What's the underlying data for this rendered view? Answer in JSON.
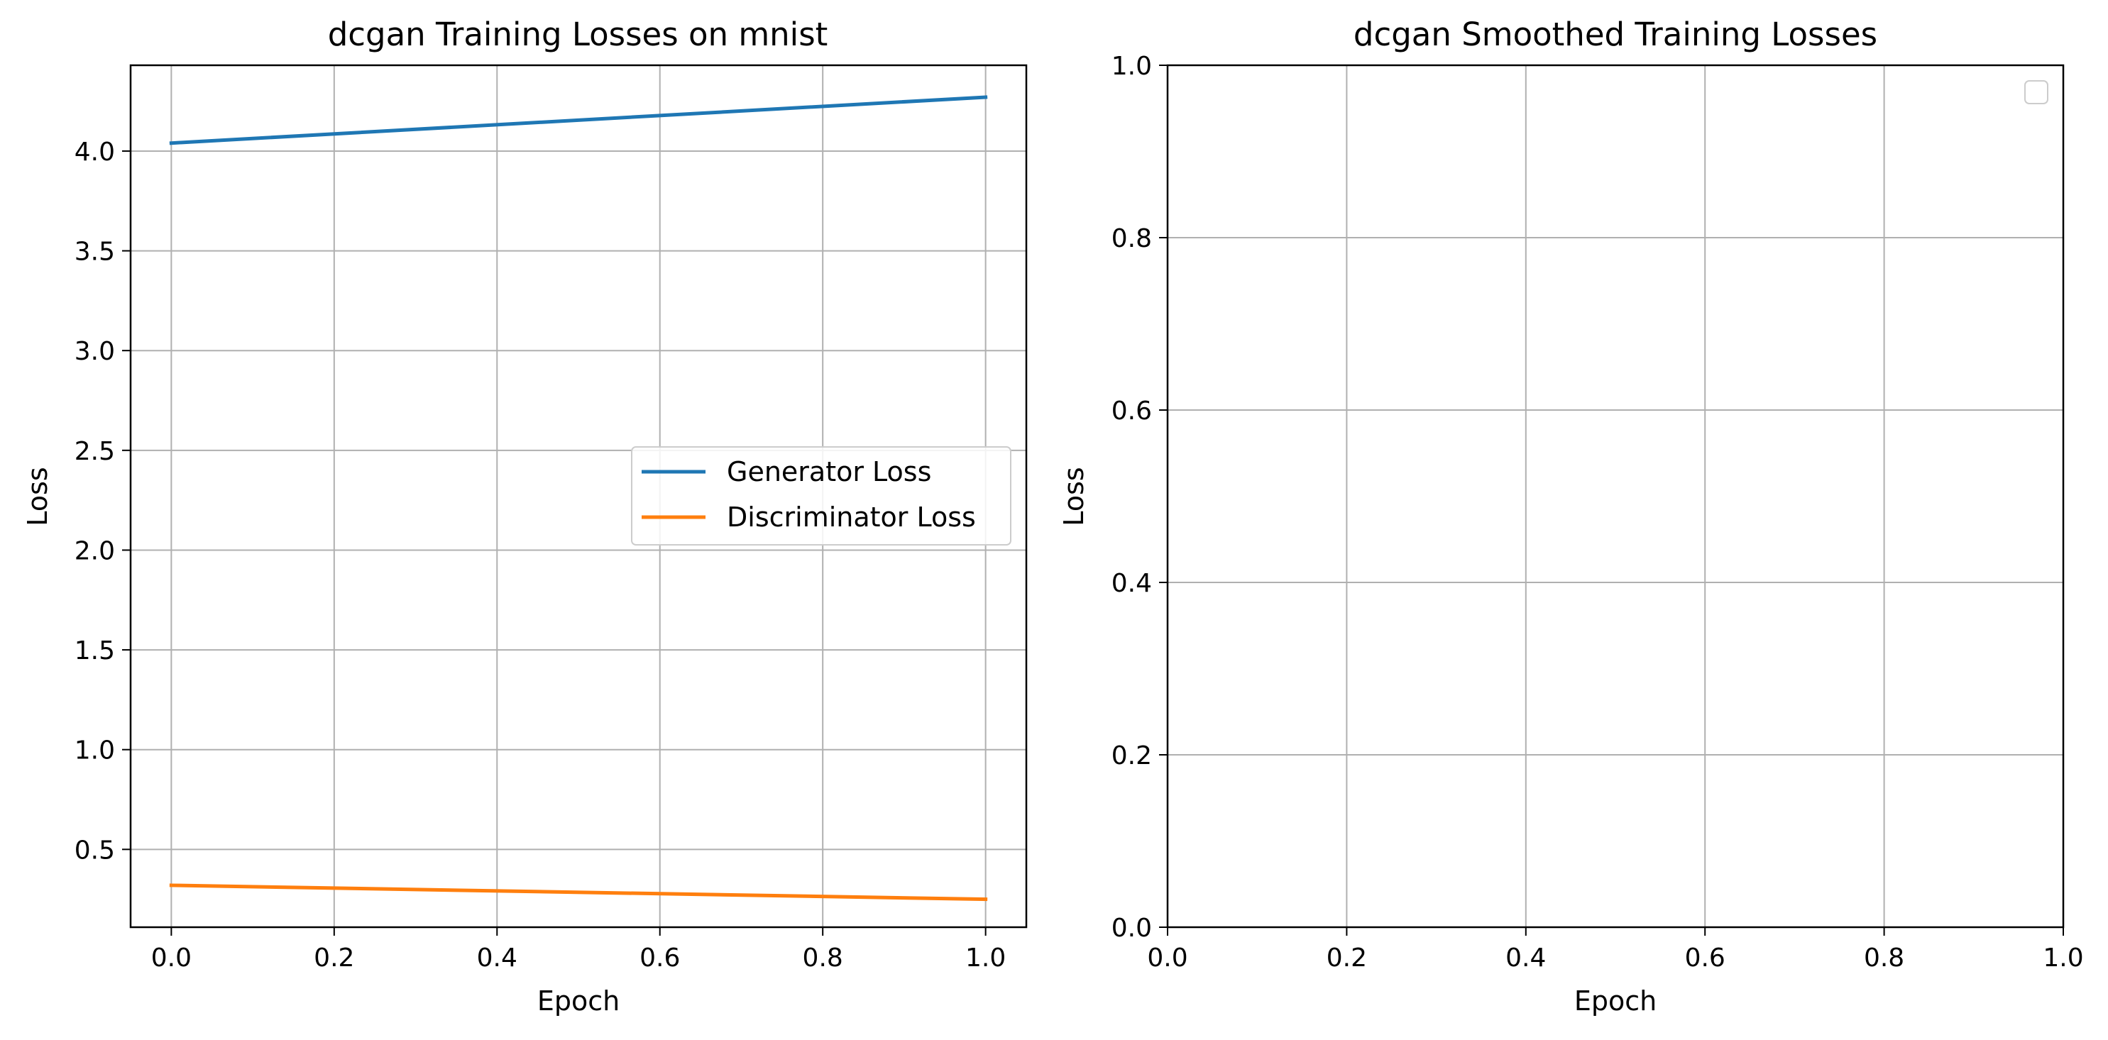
{
  "chart_data": [
    {
      "type": "line",
      "title": "dcgan Training Losses on mnist",
      "xlabel": "Epoch",
      "ylabel": "Loss",
      "xlim": [
        -0.05,
        1.05
      ],
      "ylim": [
        0.11,
        4.43
      ],
      "xticks": [
        "0.0",
        "0.2",
        "0.4",
        "0.6",
        "0.8",
        "1.0"
      ],
      "yticks": [
        "0.5",
        "1.0",
        "1.5",
        "2.0",
        "2.5",
        "3.0",
        "3.5",
        "4.0"
      ],
      "grid": true,
      "legend_position": "center-right",
      "x": [
        0,
        1
      ],
      "series": [
        {
          "name": "Generator Loss",
          "color": "#1f77b4",
          "values": [
            4.04,
            4.27
          ]
        },
        {
          "name": "Discriminator Loss",
          "color": "#ff7f0e",
          "values": [
            0.32,
            0.25
          ]
        }
      ]
    },
    {
      "type": "line",
      "title": "dcgan Smoothed Training Losses",
      "xlabel": "Epoch",
      "ylabel": "Loss",
      "xlim": [
        0,
        1
      ],
      "ylim": [
        0,
        1
      ],
      "xticks": [
        "0.0",
        "0.2",
        "0.4",
        "0.6",
        "0.8",
        "1.0"
      ],
      "yticks": [
        "0.0",
        "0.2",
        "0.4",
        "0.6",
        "0.8",
        "1.0"
      ],
      "grid": true,
      "legend_position": "top-right",
      "x": [],
      "series": []
    }
  ]
}
